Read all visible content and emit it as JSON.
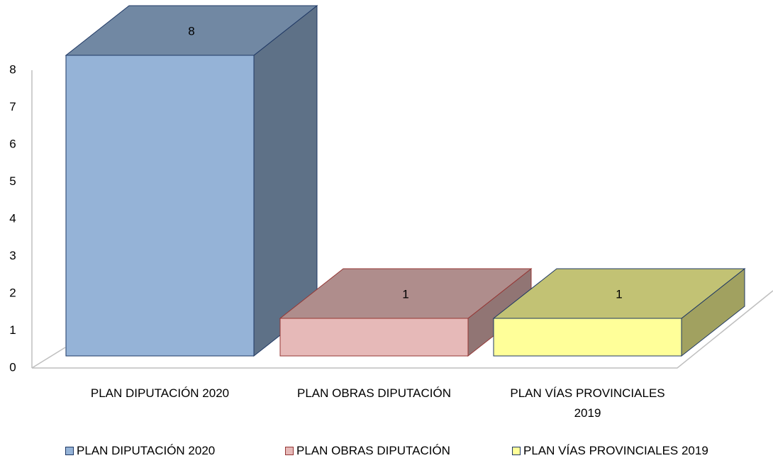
{
  "chart_data": {
    "type": "bar3d",
    "categories": [
      "PLAN DIPUTACIÓN 2020",
      "PLAN OBRAS DIPUTACIÓN",
      "PLAN VÍAS PROVINCIALES 2019"
    ],
    "values": [
      8,
      1,
      1
    ],
    "colors": [
      "#95b3d7",
      "#e6b9b8",
      "#ffff99"
    ],
    "ylim": [
      0,
      8
    ],
    "yticks": [
      0,
      1,
      2,
      3,
      4,
      5,
      6,
      7,
      8
    ],
    "legend": "bottom"
  }
}
